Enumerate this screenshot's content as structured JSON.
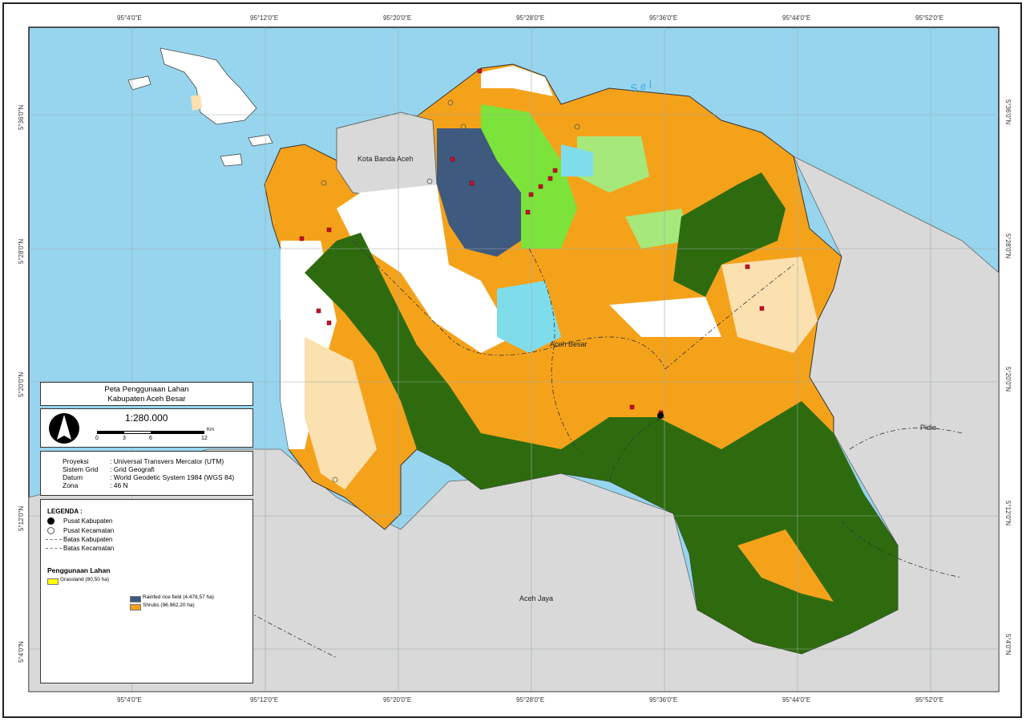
{
  "map": {
    "title_line1": "Peta Penggunaan Lahan",
    "title_line2": "Kabupaten Aceh Besar",
    "scale": "1:280.000",
    "scalebar": {
      "ticks": [
        "0",
        "3",
        "6",
        "12"
      ],
      "unit": "Km"
    },
    "projection": [
      {
        "key": "Proyeksi",
        "value": ": Universal Transvers Mercator (UTM)"
      },
      {
        "key": "Sistem Grid",
        "value": ": Grid Geografi"
      },
      {
        "key": "Datum",
        "value": ": World Geodetic System 1984 (WGS 84)"
      },
      {
        "key": "Zona",
        "value": ": 46 N"
      }
    ],
    "legend": {
      "title": "LEGENDA :",
      "symbols": [
        {
          "label": "Pusat Kabupaten",
          "icon": "filled-circle-icon"
        },
        {
          "label": "Pusat Kecamatan",
          "icon": "ringed-circle-icon"
        },
        {
          "label": "Batas Kabupaten",
          "icon": "dash-dot-line-icon"
        },
        {
          "label": "Batas Kecamatan",
          "icon": "dash-line-icon"
        }
      ],
      "landuse_title": "Penggunaan Lahan",
      "landuse": [
        {
          "label": "Grassland (80,50 ha)",
          "color": "#FFFF00"
        },
        {
          "label": "Rainfed rice field (4.478,57 ha)",
          "color": "#3F5A7F"
        },
        {
          "label": "Shrubs (96.962,20 ha)",
          "color": "#F5A21B"
        }
      ]
    },
    "grid": {
      "longitudes": [
        "95°4'0\"E",
        "95°12'0\"E",
        "95°20'0\"E",
        "95°28'0\"E",
        "95°36'0\"E",
        "95°44'0\"E",
        "95°52'0\"E"
      ],
      "latitudes": [
        "5°36'0\"N",
        "5°28'0\"N",
        "5°20'0\"N",
        "5°12'0\"N",
        "5°4'0\"N"
      ]
    },
    "places": {
      "banda_aceh": "Kota Banda Aceh",
      "aceh_besar": "Aceh Besar",
      "aceh_jaya": "Aceh Jaya",
      "pidie": "Pidie",
      "sea": "Sel"
    },
    "colors": {
      "sea": "#97D5EE",
      "other_land": "#D9D9D9",
      "forest": "#2E6B0E",
      "shrubs": "#F5A21B",
      "bright_green": "#7CE33A",
      "light_green": "#A6E87A",
      "rice": "#3F5A7F",
      "water_body": "#7FDDEB",
      "light_shrub": "#FBE0B0",
      "settlement": "#C8102E"
    }
  }
}
